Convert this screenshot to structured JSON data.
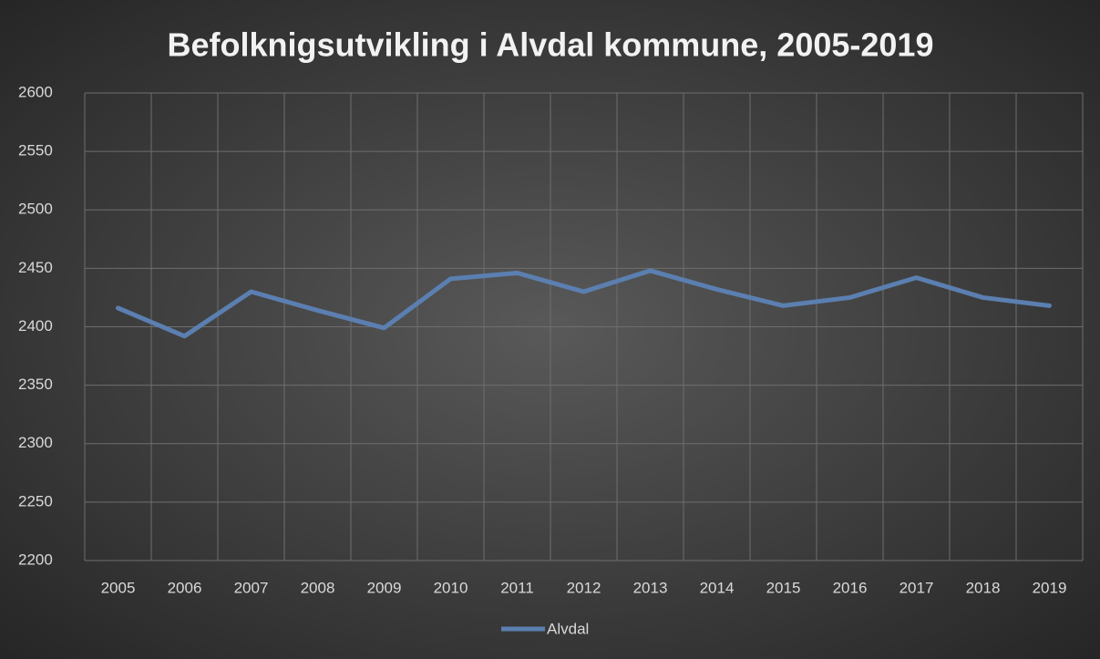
{
  "chart_data": {
    "type": "line",
    "title": "Befolknigsutvikling i Alvdal kommune, 2005-2019",
    "categories": [
      "2005",
      "2006",
      "2007",
      "2008",
      "2009",
      "2010",
      "2011",
      "2012",
      "2013",
      "2014",
      "2015",
      "2016",
      "2017",
      "2018",
      "2019"
    ],
    "series": [
      {
        "name": "Alvdal",
        "color": "#5b7fb0",
        "values": [
          2416,
          2392,
          2430,
          2414,
          2399,
          2441,
          2446,
          2430,
          2448,
          2432,
          2418,
          2425,
          2442,
          2425,
          2418
        ]
      }
    ],
    "ylim": [
      2200,
      2600
    ],
    "yticks": [
      2200,
      2250,
      2300,
      2350,
      2400,
      2450,
      2500,
      2550,
      2600
    ],
    "grid": true
  }
}
